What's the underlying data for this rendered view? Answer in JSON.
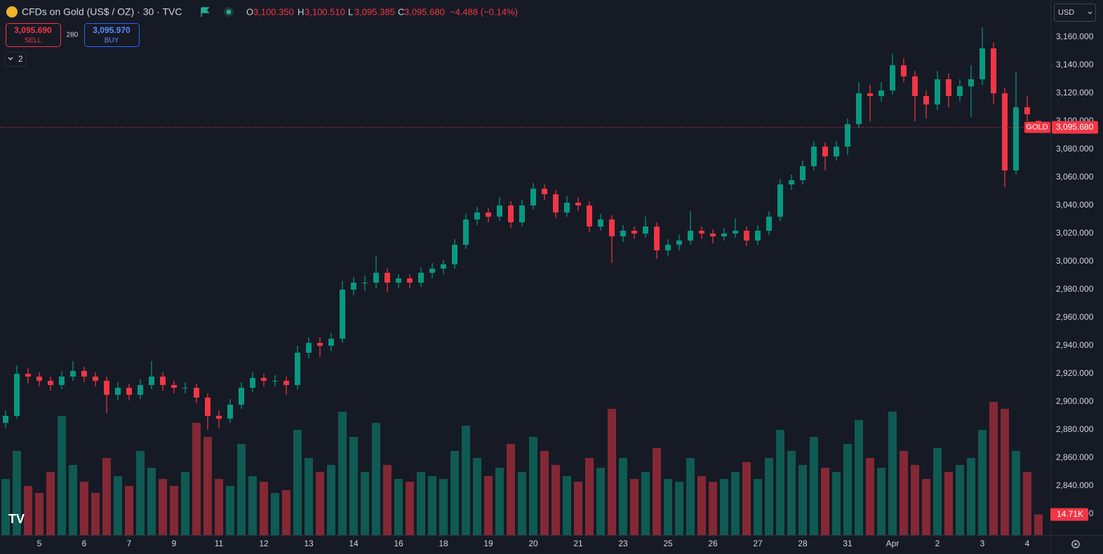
{
  "chart_data": {
    "type": "candlestick",
    "title": "CFDs on Gold (US$ / OZ) · 30 · TVC",
    "ohlc_header": {
      "o_label": "O",
      "o": "3,100.350",
      "h_label": "H",
      "h": "3,100.510",
      "l_label": "L",
      "l": "3,095.385",
      "c_label": "C",
      "c": "3,095.680",
      "change": "−4.488 (−0.14%)"
    },
    "trade": {
      "sell_price": "3,095.690",
      "sell": "SELL",
      "spread": "280",
      "buy_price": "3,095.970",
      "buy": "BUY"
    },
    "indicators_count": "2",
    "currency": "USD",
    "symbol_tag": "GOLD",
    "last_price": {
      "value": 3095.68,
      "label": "3,095.680"
    },
    "last_volume": {
      "value": 14.71,
      "label": "14.71K"
    },
    "up_color": "#089981",
    "down_color": "#f23645",
    "grid": false,
    "ylim": [
      2805,
      3186.5
    ],
    "yticks": [
      {
        "value": 3160,
        "label": "3,160.000"
      },
      {
        "value": 3140,
        "label": "3,140.000"
      },
      {
        "value": 3120,
        "label": "3,120.000"
      },
      {
        "value": 3100,
        "label": "3,100.000"
      },
      {
        "value": 3080,
        "label": "3,080.000"
      },
      {
        "value": 3060,
        "label": "3,060.000"
      },
      {
        "value": 3040,
        "label": "3,040.000"
      },
      {
        "value": 3020,
        "label": "3,020.000"
      },
      {
        "value": 3000,
        "label": "3,000.000"
      },
      {
        "value": 2980,
        "label": "2,980.000"
      },
      {
        "value": 2960,
        "label": "2,960.000"
      },
      {
        "value": 2940,
        "label": "2,940.000"
      },
      {
        "value": 2920,
        "label": "2,920.000"
      },
      {
        "value": 2900,
        "label": "2,900.000"
      },
      {
        "value": 2880,
        "label": "2,880.000"
      },
      {
        "value": 2860,
        "label": "2,860.000"
      },
      {
        "value": 2840,
        "label": "2,840.000"
      },
      {
        "value": 2820,
        "label": "2,820.000"
      }
    ],
    "categories": [
      null,
      null,
      null,
      "5",
      null,
      null,
      null,
      "6",
      null,
      null,
      null,
      "7",
      null,
      null,
      null,
      "9",
      null,
      null,
      null,
      "11",
      null,
      null,
      null,
      "12",
      null,
      null,
      null,
      "13",
      null,
      null,
      null,
      "14",
      null,
      null,
      null,
      "16",
      null,
      null,
      null,
      "18",
      null,
      null,
      null,
      "19",
      null,
      null,
      null,
      "20",
      null,
      null,
      null,
      "21",
      null,
      null,
      null,
      "23",
      null,
      null,
      null,
      "25",
      null,
      null,
      null,
      "26",
      null,
      null,
      null,
      "27",
      null,
      null,
      null,
      "28",
      null,
      null,
      null,
      "31",
      null,
      null,
      null,
      "Apr",
      null,
      null,
      null,
      "2",
      null,
      null,
      null,
      "3",
      null,
      null,
      null,
      "4",
      null
    ],
    "ohlc": [
      [
        2885,
        2894,
        2881,
        2890
      ],
      [
        2890,
        2926,
        2888,
        2920
      ],
      [
        2920,
        2924,
        2913,
        2918
      ],
      [
        2918,
        2921,
        2911,
        2915
      ],
      [
        2915,
        2918,
        2908,
        2912
      ],
      [
        2912,
        2922,
        2909,
        2918
      ],
      [
        2918,
        2929,
        2915,
        2922
      ],
      [
        2922,
        2925,
        2914,
        2918
      ],
      [
        2918,
        2921,
        2911,
        2915
      ],
      [
        2915,
        2918,
        2892,
        2905
      ],
      [
        2905,
        2914,
        2901,
        2910
      ],
      [
        2910,
        2913,
        2901,
        2905
      ],
      [
        2905,
        2916,
        2902,
        2912
      ],
      [
        2912,
        2929,
        2909,
        2918
      ],
      [
        2918,
        2921,
        2908,
        2912
      ],
      [
        2912,
        2915,
        2906,
        2910
      ],
      [
        2910,
        2914,
        2906,
        2910
      ],
      [
        2910,
        2913,
        2899,
        2903
      ],
      [
        2903,
        2906,
        2880,
        2890
      ],
      [
        2890,
        2894,
        2881,
        2888
      ],
      [
        2888,
        2902,
        2885,
        2898
      ],
      [
        2898,
        2914,
        2895,
        2910
      ],
      [
        2910,
        2921,
        2907,
        2917
      ],
      [
        2917,
        2920,
        2911,
        2915
      ],
      [
        2915,
        2919,
        2911,
        2915
      ],
      [
        2915,
        2918,
        2905,
        2912
      ],
      [
        2912,
        2940,
        2909,
        2935
      ],
      [
        2935,
        2946,
        2931,
        2942
      ],
      [
        2942,
        2946,
        2932,
        2940
      ],
      [
        2940,
        2949,
        2936,
        2945
      ],
      [
        2945,
        2986,
        2942,
        2980
      ],
      [
        2980,
        2989,
        2976,
        2985
      ],
      [
        2985,
        2990,
        2979,
        2985
      ],
      [
        2985,
        3004,
        2981,
        2992
      ],
      [
        2992,
        2995,
        2978,
        2985
      ],
      [
        2985,
        2991,
        2981,
        2988
      ],
      [
        2988,
        2991,
        2981,
        2985
      ],
      [
        2985,
        2996,
        2982,
        2992
      ],
      [
        2992,
        2999,
        2988,
        2995
      ],
      [
        2995,
        3001,
        2991,
        2998
      ],
      [
        2998,
        3016,
        2995,
        3012
      ],
      [
        3012,
        3034,
        3009,
        3030
      ],
      [
        3030,
        3039,
        3026,
        3035
      ],
      [
        3035,
        3038,
        3028,
        3032
      ],
      [
        3032,
        3046,
        3029,
        3040
      ],
      [
        3040,
        3043,
        3024,
        3028
      ],
      [
        3028,
        3044,
        3025,
        3040
      ],
      [
        3040,
        3056,
        3037,
        3052
      ],
      [
        3052,
        3055,
        3044,
        3048
      ],
      [
        3048,
        3051,
        3031,
        3035
      ],
      [
        3035,
        3047,
        3032,
        3042
      ],
      [
        3042,
        3046,
        3036,
        3040
      ],
      [
        3040,
        3043,
        3021,
        3025
      ],
      [
        3025,
        3034,
        3022,
        3030
      ],
      [
        3030,
        3033,
        2999,
        3018
      ],
      [
        3018,
        3026,
        3014,
        3022
      ],
      [
        3022,
        3025,
        3016,
        3020
      ],
      [
        3020,
        3032,
        3017,
        3025
      ],
      [
        3025,
        3028,
        3002,
        3008
      ],
      [
        3008,
        3016,
        3004,
        3012
      ],
      [
        3012,
        3019,
        3008,
        3015
      ],
      [
        3015,
        3036,
        3012,
        3022
      ],
      [
        3022,
        3025,
        3016,
        3020
      ],
      [
        3020,
        3023,
        3013,
        3018
      ],
      [
        3018,
        3024,
        3015,
        3020
      ],
      [
        3020,
        3031,
        3017,
        3022
      ],
      [
        3022,
        3025,
        3011,
        3015
      ],
      [
        3015,
        3026,
        3012,
        3022
      ],
      [
        3022,
        3036,
        3019,
        3032
      ],
      [
        3032,
        3059,
        3029,
        3055
      ],
      [
        3055,
        3062,
        3051,
        3058
      ],
      [
        3058,
        3072,
        3055,
        3068
      ],
      [
        3068,
        3086,
        3065,
        3082
      ],
      [
        3082,
        3085,
        3065,
        3075
      ],
      [
        3075,
        3086,
        3072,
        3082
      ],
      [
        3082,
        3102,
        3076,
        3098
      ],
      [
        3098,
        3128,
        3095,
        3120
      ],
      [
        3120,
        3126,
        3100,
        3118
      ],
      [
        3118,
        3128,
        3114,
        3122
      ],
      [
        3122,
        3148,
        3119,
        3140
      ],
      [
        3140,
        3145,
        3128,
        3132
      ],
      [
        3132,
        3136,
        3100,
        3118
      ],
      [
        3118,
        3122,
        3102,
        3112
      ],
      [
        3112,
        3136,
        3108,
        3130
      ],
      [
        3130,
        3134,
        3110,
        3118
      ],
      [
        3118,
        3130,
        3114,
        3125
      ],
      [
        3125,
        3140,
        3103,
        3130
      ],
      [
        3130,
        3167,
        3126,
        3152
      ],
      [
        3152,
        3156,
        3112,
        3120
      ],
      [
        3120,
        3124,
        3053,
        3065
      ],
      [
        3065,
        3135,
        3062,
        3110
      ],
      [
        3110,
        3118,
        3100,
        3105
      ],
      [
        3100.35,
        3100.51,
        3095.385,
        3095.68
      ]
    ],
    "volume": [
      40,
      60,
      35,
      30,
      45,
      85,
      50,
      38,
      30,
      55,
      42,
      35,
      60,
      48,
      40,
      35,
      45,
      80,
      70,
      40,
      35,
      65,
      42,
      38,
      30,
      32,
      75,
      55,
      45,
      50,
      88,
      70,
      45,
      80,
      50,
      40,
      38,
      45,
      42,
      40,
      60,
      78,
      55,
      42,
      48,
      65,
      45,
      70,
      60,
      50,
      42,
      38,
      55,
      48,
      90,
      55,
      40,
      45,
      62,
      40,
      38,
      55,
      42,
      38,
      40,
      45,
      52,
      40,
      55,
      75,
      60,
      50,
      70,
      48,
      45,
      65,
      82,
      55,
      48,
      88,
      60,
      50,
      40,
      62,
      45,
      50,
      55,
      75,
      95,
      90,
      60,
      45,
      14.71
    ]
  }
}
